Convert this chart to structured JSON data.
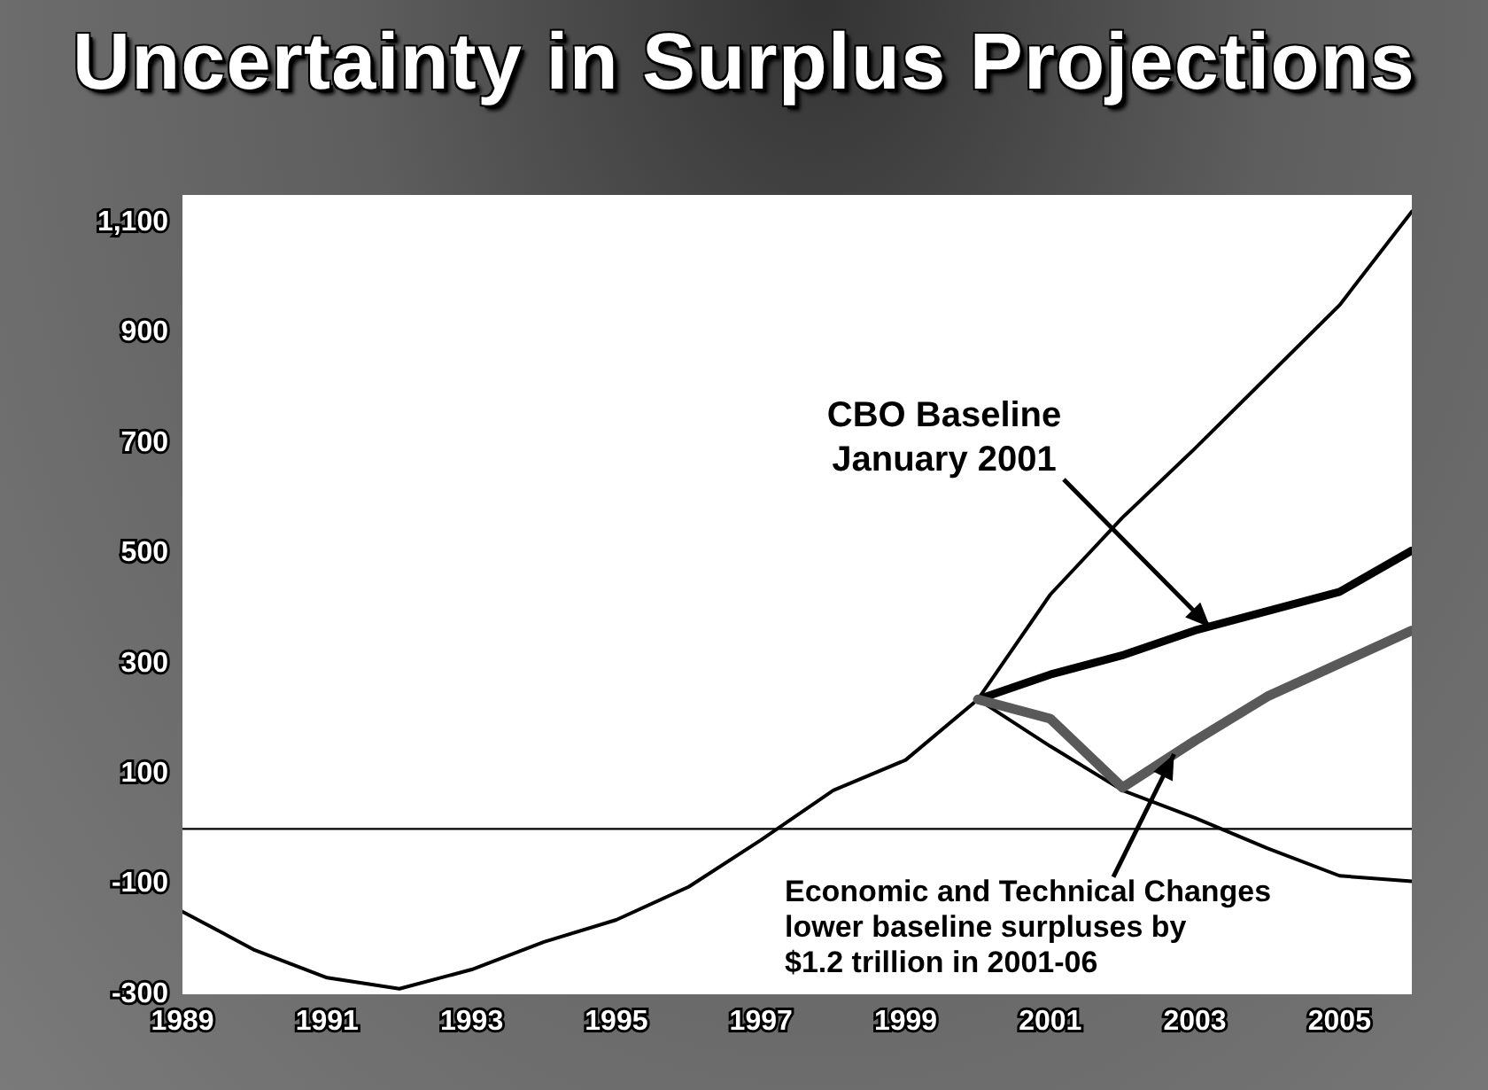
{
  "chart_data": {
    "type": "line",
    "title": "Uncertainty in Surplus Projections",
    "xlim": [
      1989,
      2006
    ],
    "xticks": [
      1989,
      1991,
      1993,
      1995,
      1997,
      1999,
      2001,
      2003,
      2005
    ],
    "ylim": [
      -300,
      1150
    ],
    "yticks": [
      -300,
      -100,
      100,
      300,
      500,
      700,
      900,
      {
        "value": 1100,
        "label": "1,100"
      }
    ],
    "ref_lines": [
      {
        "axis": "y",
        "value": 0,
        "color": "#000000"
      }
    ],
    "series": [
      {
        "color": "#000000",
        "x": [
          1989,
          1990,
          1991,
          1992,
          1993,
          1994,
          1995,
          1996,
          1997,
          1998,
          1999,
          2000,
          2001,
          2002,
          2003,
          2004,
          2005,
          2006
        ],
        "values": [
          -150,
          -220,
          -270,
          -290,
          -255,
          -205,
          -165,
          -105,
          -20,
          70,
          125,
          235,
          425,
          565,
          690,
          820,
          950,
          1120
        ]
      },
      {
        "color": "#000000",
        "x": [
          2000,
          2001,
          2002,
          2003,
          2004,
          2005,
          2006
        ],
        "values": [
          235,
          150,
          70,
          20,
          -35,
          -85,
          -95
        ]
      },
      {
        "color": "#000000",
        "x": [
          2000,
          2001,
          2002,
          2003,
          2004,
          2005,
          2006
        ],
        "values": [
          235,
          280,
          315,
          360,
          395,
          430,
          505
        ]
      },
      {
        "color": "#595959",
        "x": [
          2000,
          2001,
          2002,
          2003,
          2004,
          2005,
          2006
        ],
        "values": [
          235,
          200,
          75,
          160,
          240,
          300,
          360
        ]
      }
    ],
    "annotations": [
      {
        "text": "CBO Baseline\nJanuary 2001",
        "x": 2003.2,
        "y": 367
      },
      {
        "text": "Economic and Technical Changes\nlower baseline surpluses by\n$1.2 trillion in 2001-06",
        "x": 2002.7,
        "y": 135
      }
    ]
  }
}
